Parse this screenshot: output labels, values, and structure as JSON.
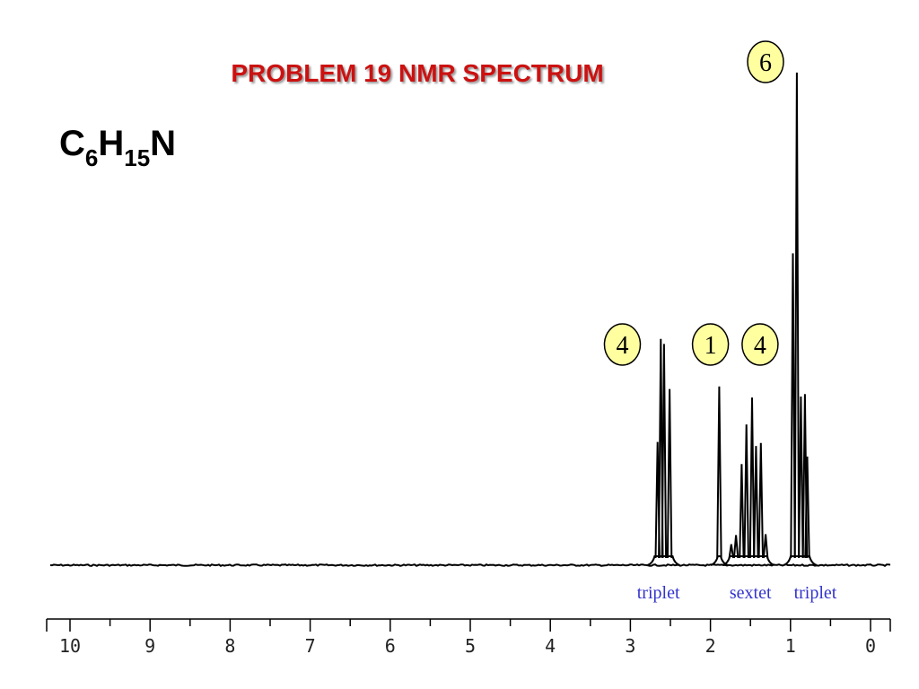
{
  "title": "PROBLEM  19   NMR SPECTRUM",
  "formula": {
    "c": "C",
    "c_sub": "6",
    "h": "H",
    "h_sub": "15",
    "n": "N"
  },
  "colors": {
    "title": "#cc1111",
    "badge_fill": "#ffffa0",
    "multiplicity": "#3333cc",
    "trace": "#000000"
  },
  "chart_data": {
    "type": "line",
    "title": "PROBLEM  19   NMR SPECTRUM",
    "xlabel": "",
    "ylabel": "",
    "xlim": [
      10.25,
      -0.2
    ],
    "x_reversed": true,
    "ylim": [
      0,
      100
    ],
    "x_ticks": [
      10,
      9,
      8,
      7,
      6,
      5,
      4,
      3,
      2,
      1,
      0
    ],
    "x_minor_ticks": [
      9.5,
      8.5,
      7.5,
      6.5,
      5.5,
      4.5,
      3.5,
      2.5,
      1.5,
      0.5
    ],
    "baseline": 0,
    "peaks": [
      {
        "ppm": 2.66,
        "height": 24.6
      },
      {
        "ppm": 2.62,
        "height": 45.2
      },
      {
        "ppm": 2.58,
        "height": 44.2
      },
      {
        "ppm": 2.51,
        "height": 35.2
      },
      {
        "ppm": 1.89,
        "height": 35.7
      },
      {
        "ppm": 1.74,
        "height": 4.2
      },
      {
        "ppm": 1.68,
        "height": 6.0
      },
      {
        "ppm": 1.61,
        "height": 20.2
      },
      {
        "ppm": 1.55,
        "height": 28.1
      },
      {
        "ppm": 1.48,
        "height": 33.5
      },
      {
        "ppm": 1.43,
        "height": 23.8
      },
      {
        "ppm": 1.37,
        "height": 24.4
      },
      {
        "ppm": 1.31,
        "height": 6.2
      },
      {
        "ppm": 0.97,
        "height": 62.3
      },
      {
        "ppm": 0.92,
        "height": 98.4
      },
      {
        "ppm": 0.87,
        "height": 33.7
      },
      {
        "ppm": 0.82,
        "height": 34.2
      },
      {
        "ppm": 0.79,
        "height": 21.7
      }
    ],
    "integrations": [
      {
        "label": "4",
        "ppm": 3.1
      },
      {
        "label": "1",
        "ppm": 2.0
      },
      {
        "label": "4",
        "ppm": 1.38
      },
      {
        "label": "6",
        "ppm": 1.33
      }
    ],
    "annotations": [
      {
        "text": "triplet",
        "ppm": 2.65
      },
      {
        "text": "sextet",
        "ppm": 1.5
      },
      {
        "text": "triplet",
        "ppm": 0.69
      }
    ]
  }
}
